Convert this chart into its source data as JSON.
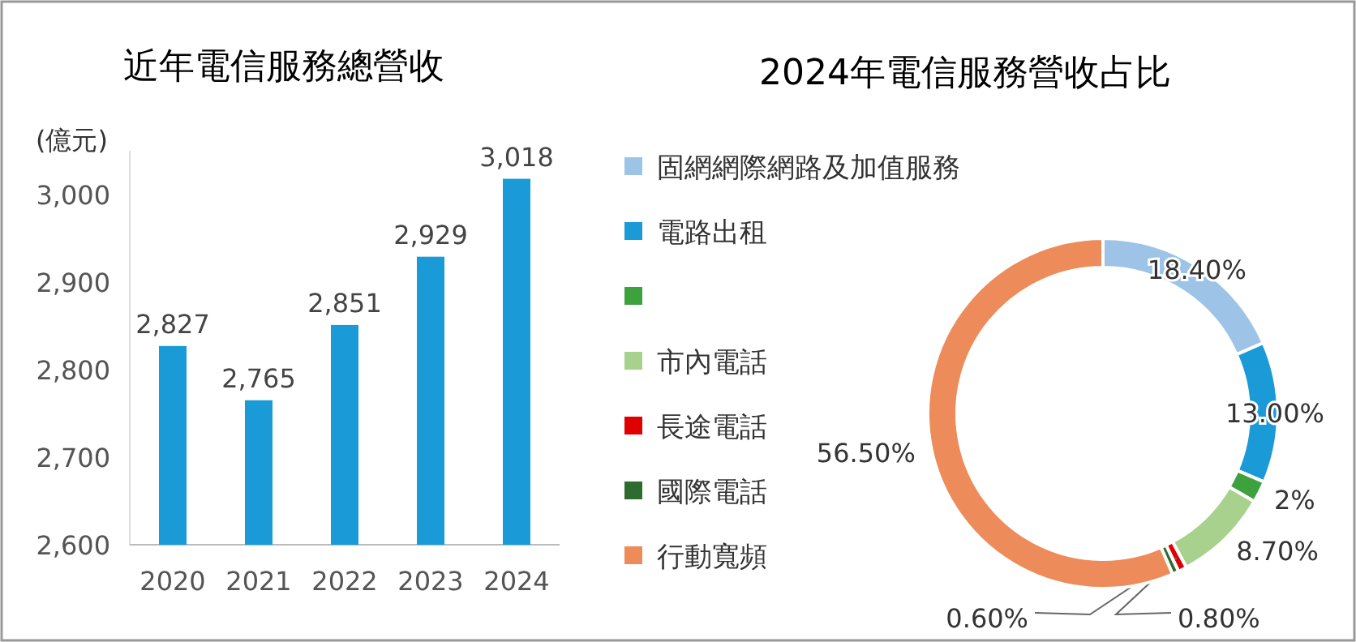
{
  "chart_data": [
    {
      "type": "bar",
      "title": "近年電信服務總營收",
      "ylabel": "(億元)",
      "categories": [
        "2020",
        "2021",
        "2022",
        "2023",
        "2024"
      ],
      "values": [
        2827,
        2765,
        2851,
        2929,
        3018
      ],
      "value_labels": [
        "2,827",
        "2,765",
        "2,851",
        "2,929",
        "3,018"
      ],
      "color": "#1a9ad6",
      "ylim": [
        2600,
        3050
      ],
      "yticks": [
        {
          "value": 2600,
          "label": "2,600"
        },
        {
          "value": 2700,
          "label": "2,700"
        },
        {
          "value": 2800,
          "label": "2,800"
        },
        {
          "value": 2900,
          "label": "2,900"
        },
        {
          "value": 3000,
          "label": "3,000"
        }
      ],
      "grid": false
    },
    {
      "type": "donut",
      "title": "2024年電信服務營收占比",
      "categories": [
        "固網網際網路及加值服務",
        "電路出租",
        null,
        "市內電話",
        "長途電話",
        "國際電話",
        "行動寬頻"
      ],
      "values": [
        18.4,
        13.0,
        2,
        8.7,
        0.8,
        0.6,
        56.5
      ],
      "value_labels": [
        "18.40%",
        "13.00%",
        "2%",
        "8.70%",
        "0.80%",
        "0.60%",
        "56.50%"
      ],
      "colors": [
        "#9dc3e6",
        "#1a9ad6",
        "#3da23d",
        "#a9d18e",
        "#e00000",
        "#2e6b2e",
        "#ed8c5a"
      ],
      "legend": "left"
    }
  ]
}
